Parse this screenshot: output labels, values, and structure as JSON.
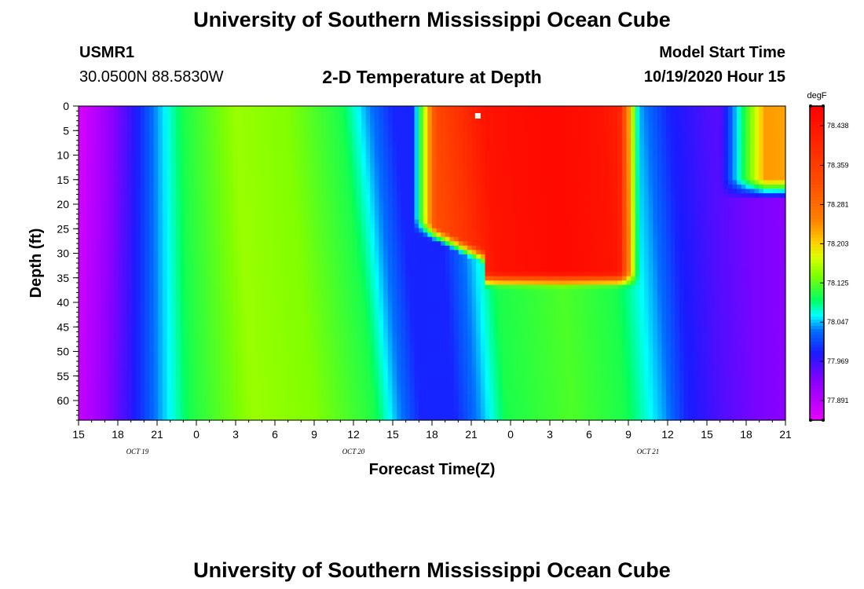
{
  "page": {
    "title_top": "University of Southern Mississippi Ocean Cube",
    "title_bottom": "University of Southern Mississippi Ocean Cube",
    "station_id": "USMR1",
    "station_coords": "30.0500N 88.5830W",
    "plot_title": "2-D Temperature at Depth",
    "model_start_label": "Model Start Time",
    "model_start_value": "10/19/2020 Hour 15"
  },
  "colors": {
    "background": "#ffffff",
    "axis": "#000000",
    "marker": "#ffffff"
  },
  "chart_data": {
    "type": "heatmap",
    "title": "2-D Temperature at Depth",
    "xlabel": "Forecast Time(Z)",
    "ylabel": "Depth (ft)",
    "x_range_hours": [
      0,
      54
    ],
    "y_range_ft": [
      0,
      64
    ],
    "x_ticks": [
      "15",
      "18",
      "21",
      "0",
      "3",
      "6",
      "9",
      "12",
      "15",
      "18",
      "21",
      "0",
      "3",
      "6",
      "9",
      "12",
      "15",
      "18",
      "21"
    ],
    "y_ticks": [
      "0",
      "5",
      "10",
      "15",
      "20",
      "25",
      "30",
      "35",
      "40",
      "45",
      "50",
      "55",
      "60"
    ],
    "date_labels": [
      {
        "text": "OCT 19",
        "hour": 4.5
      },
      {
        "text": "OCT 20",
        "hour": 21
      },
      {
        "text": "OCT 21",
        "hour": 43.5
      }
    ],
    "colorbar": {
      "unit": "degF",
      "min": 77.852,
      "max": 78.477,
      "labels": [
        "78.438",
        "78.359",
        "78.281",
        "78.203",
        "78.125",
        "78.047",
        "77.969",
        "77.891"
      ],
      "stops": [
        {
          "v": 77.852,
          "color": "#e600ff"
        },
        {
          "v": 77.93,
          "color": "#8a00ff"
        },
        {
          "v": 77.985,
          "color": "#1a1aff"
        },
        {
          "v": 78.03,
          "color": "#0070ff"
        },
        {
          "v": 78.06,
          "color": "#00ffff"
        },
        {
          "v": 78.09,
          "color": "#00ff60"
        },
        {
          "v": 78.14,
          "color": "#80ff00"
        },
        {
          "v": 78.175,
          "color": "#d8ff00"
        },
        {
          "v": 78.205,
          "color": "#ffd000"
        },
        {
          "v": 78.25,
          "color": "#ff8000"
        },
        {
          "v": 78.32,
          "color": "#ff5000"
        },
        {
          "v": 78.477,
          "color": "#ff0000"
        }
      ]
    },
    "marker": {
      "hour": 30.5,
      "depth_ft": 2
    }
  }
}
